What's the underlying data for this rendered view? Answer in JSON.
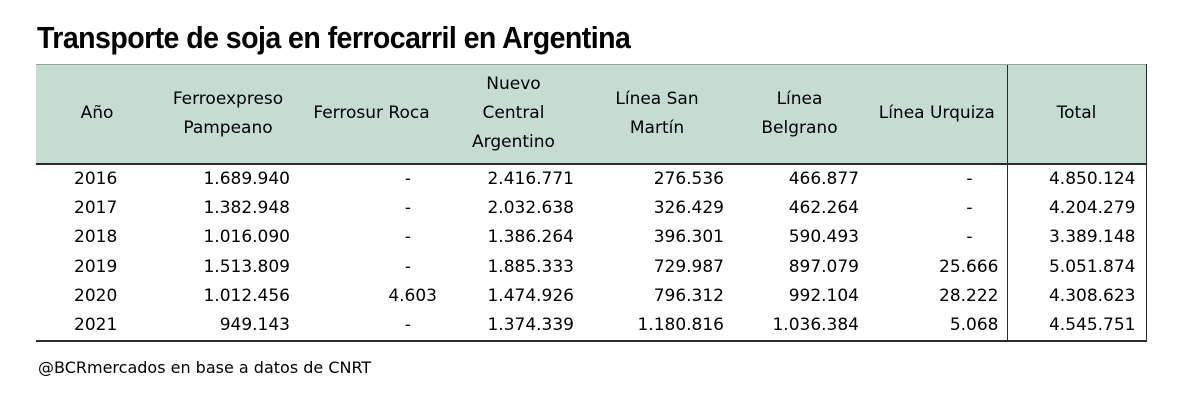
{
  "title": "Transporte de soja en ferrocarril en Argentina",
  "header_color": "#c4dcd2",
  "columns": [
    {
      "lines": [
        "Año"
      ]
    },
    {
      "lines": [
        "Ferroexpreso",
        "Pampeano"
      ]
    },
    {
      "lines": [
        "Ferrosur Roca"
      ]
    },
    {
      "lines": [
        "Nuevo",
        "Central",
        "Argentino"
      ]
    },
    {
      "lines": [
        "Línea San",
        "Martín"
      ]
    },
    {
      "lines": [
        "Línea",
        "Belgrano"
      ]
    },
    {
      "lines": [
        "Línea Urquiza"
      ]
    },
    {
      "lines": [
        "Total"
      ]
    }
  ],
  "rows": [
    [
      "2016",
      "1.689.940",
      "-",
      "2.416.771",
      "276.536",
      "466.877",
      "-",
      "4.850.124"
    ],
    [
      "2017",
      "1.382.948",
      "-",
      "2.032.638",
      "326.429",
      "462.264",
      "-",
      "4.204.279"
    ],
    [
      "2018",
      "1.016.090",
      "-",
      "1.386.264",
      "396.301",
      "590.493",
      "-",
      "3.389.148"
    ],
    [
      "2019",
      "1.513.809",
      "-",
      "1.885.333",
      "729.987",
      "897.079",
      "25.666",
      "5.051.874"
    ],
    [
      "2020",
      "1.012.456",
      "4.603",
      "1.474.926",
      "796.312",
      "992.104",
      "28.222",
      "4.308.623"
    ],
    [
      "2021",
      "949.143",
      "-",
      "1.374.339",
      "1.180.816",
      "1.036.384",
      "5.068",
      "4.545.751"
    ]
  ],
  "source": "@BCRmercados en base a datos de CNRT"
}
